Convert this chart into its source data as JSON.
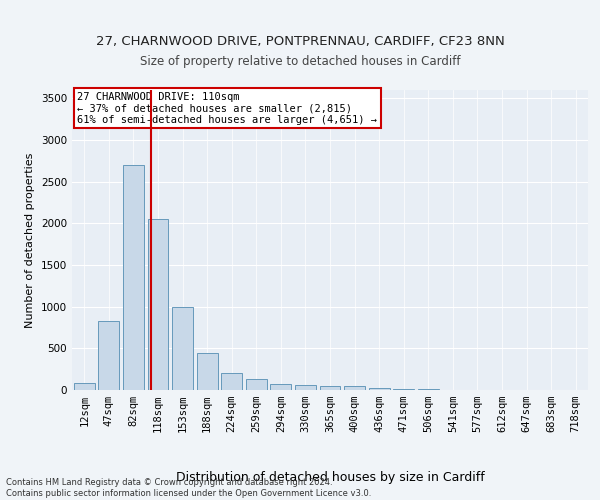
{
  "title_line1": "27, CHARNWOOD DRIVE, PONTPRENNAU, CARDIFF, CF23 8NN",
  "title_line2": "Size of property relative to detached houses in Cardiff",
  "xlabel": "Distribution of detached houses by size in Cardiff",
  "ylabel": "Number of detached properties",
  "footnote": "Contains HM Land Registry data © Crown copyright and database right 2024.\nContains public sector information licensed under the Open Government Licence v3.0.",
  "bar_labels": [
    "12sqm",
    "47sqm",
    "82sqm",
    "118sqm",
    "153sqm",
    "188sqm",
    "224sqm",
    "259sqm",
    "294sqm",
    "330sqm",
    "365sqm",
    "400sqm",
    "436sqm",
    "471sqm",
    "506sqm",
    "541sqm",
    "577sqm",
    "612sqm",
    "647sqm",
    "683sqm",
    "718sqm"
  ],
  "bar_values": [
    80,
    830,
    2700,
    2050,
    1000,
    450,
    200,
    130,
    70,
    60,
    50,
    50,
    30,
    15,
    10,
    5,
    5,
    3,
    2,
    2,
    1
  ],
  "bar_color": "#c8d8e8",
  "bar_edgecolor": "#6699bb",
  "vline_x": 2.72,
  "vline_color": "#cc0000",
  "annotation_text": "27 CHARNWOOD DRIVE: 110sqm\n← 37% of detached houses are smaller (2,815)\n61% of semi-detached houses are larger (4,651) →",
  "annotation_box_color": "#ffffff",
  "annotation_box_edgecolor": "#cc0000",
  "ylim": [
    0,
    3600
  ],
  "yticks": [
    0,
    500,
    1000,
    1500,
    2000,
    2500,
    3000,
    3500
  ],
  "background_color": "#f0f4f8",
  "plot_background": "#e8eef5",
  "grid_color": "#ffffff",
  "title1_fontsize": 9.5,
  "title2_fontsize": 8.5,
  "xlabel_fontsize": 9,
  "ylabel_fontsize": 8,
  "tick_fontsize": 7.5,
  "annotation_fontsize": 7.5,
  "footnote_fontsize": 6
}
